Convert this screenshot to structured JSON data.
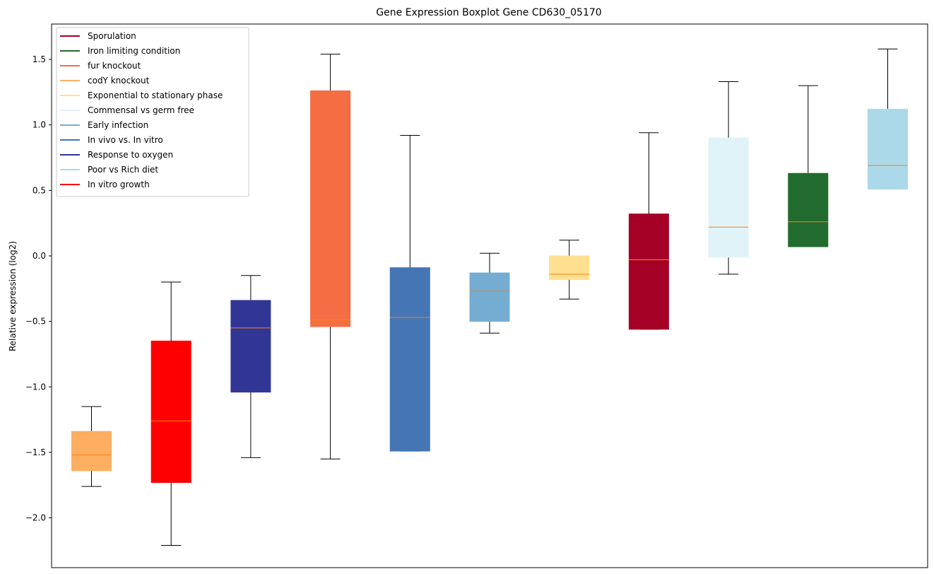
{
  "chart_data": {
    "type": "boxplot",
    "title": "Gene Expression Boxplot Gene CD630_05170",
    "xlabel": "",
    "ylabel": "Relative expression (log2)",
    "ylim": [
      -2.38,
      1.77
    ],
    "yticks": [
      -2.0,
      -1.5,
      -1.0,
      -0.5,
      0.0,
      0.5,
      1.0,
      1.5
    ],
    "ytick_labels": [
      "−2.0",
      "−1.5",
      "−1.0",
      "−0.5",
      "0.0",
      "0.5",
      "1.0",
      "1.5"
    ],
    "legend_position": "top-left",
    "median_color": "#ff7f0e",
    "series": [
      {
        "name": "codY knockout",
        "color": "#fdae61",
        "whisker_low": -1.76,
        "q1": -1.64,
        "median": -1.52,
        "q3": -1.34,
        "whisker_high": -1.15
      },
      {
        "name": "In vitro growth",
        "color": "#ff0000",
        "whisker_low": -2.21,
        "q1": -1.73,
        "median": -1.26,
        "q3": -0.65,
        "whisker_high": -0.2
      },
      {
        "name": "Response to oxygen",
        "color": "#313695",
        "whisker_low": -1.54,
        "q1": -1.04,
        "median": -0.55,
        "q3": -0.34,
        "whisker_high": -0.15
      },
      {
        "name": "fur knockout",
        "color": "#f46d43",
        "whisker_low": -1.55,
        "q1": -0.54,
        "median": -0.49,
        "q3": 1.26,
        "whisker_high": 1.54
      },
      {
        "name": "In vivo vs. In vitro",
        "color": "#4575b4",
        "whisker_low": -1.49,
        "q1": -1.49,
        "median": -0.47,
        "q3": -0.09,
        "whisker_high": 0.92
      },
      {
        "name": "Early infection",
        "color": "#74add1",
        "whisker_low": -0.59,
        "q1": -0.5,
        "median": -0.27,
        "q3": -0.13,
        "whisker_high": 0.02
      },
      {
        "name": "Exponential to stationary phase",
        "color": "#fee090",
        "whisker_low": -0.33,
        "q1": -0.18,
        "median": -0.14,
        "q3": 0.0,
        "whisker_high": 0.12
      },
      {
        "name": "Sporulation",
        "color": "#a50026",
        "whisker_low": -0.56,
        "q1": -0.56,
        "median": -0.03,
        "q3": 0.32,
        "whisker_high": 0.94
      },
      {
        "name": "Commensal vs germ free",
        "color": "#e0f3f8",
        "whisker_low": -0.14,
        "q1": -0.01,
        "median": 0.22,
        "q3": 0.9,
        "whisker_high": 1.33
      },
      {
        "name": "Iron limiting condition",
        "color": "#226b2e",
        "whisker_low": 0.07,
        "q1": 0.07,
        "median": 0.26,
        "q3": 0.63,
        "whisker_high": 1.3
      },
      {
        "name": "Poor vs Rich diet",
        "color": "#abd9e9",
        "whisker_low": 0.51,
        "q1": 0.51,
        "median": 0.69,
        "q3": 1.12,
        "whisker_high": 1.58
      }
    ],
    "legend": [
      {
        "label": "Sporulation",
        "color": "#a50026"
      },
      {
        "label": "Iron limiting condition",
        "color": "#226b2e"
      },
      {
        "label": "fur knockout",
        "color": "#f46d43"
      },
      {
        "label": "codY knockout",
        "color": "#fdae61"
      },
      {
        "label": "Exponential to stationary phase",
        "color": "#fee090"
      },
      {
        "label": "Commensal vs germ free",
        "color": "#e0f3f8"
      },
      {
        "label": "Early infection",
        "color": "#74add1"
      },
      {
        "label": "In vivo vs. In vitro",
        "color": "#4575b4"
      },
      {
        "label": "Response to oxygen",
        "color": "#313695"
      },
      {
        "label": "Poor vs Rich diet",
        "color": "#abd9e9"
      },
      {
        "label": "In vitro growth",
        "color": "#ff0000"
      }
    ]
  }
}
